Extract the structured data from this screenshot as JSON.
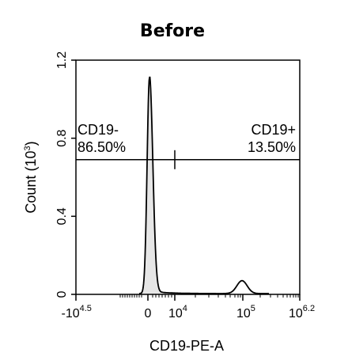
{
  "chart_data": {
    "type": "area",
    "title": "Before",
    "xlabel": "CD19-PE-A",
    "ylabel": "Count",
    "ylabel_unit_base": "10",
    "ylabel_unit_exp": "3",
    "x_scale": "biexponential",
    "ylim": [
      0,
      1.2
    ],
    "y_ticks": [
      "0",
      "0.4",
      "0.8",
      "1.2"
    ],
    "x_ticks": [
      {
        "base": "-10",
        "exp": "4.5"
      },
      {
        "base": "0",
        "exp": ""
      },
      {
        "base": "10",
        "exp": "4"
      },
      {
        "base": "10",
        "exp": "5"
      },
      {
        "base": "10",
        "exp": "6.2"
      }
    ],
    "series": [
      {
        "values": [
          {
            "x": 0,
            "y": 1.11
          },
          {
            "x": 60000,
            "y": 0.07
          }
        ]
      }
    ],
    "gate": {
      "y": 0.69,
      "divider_x": "10^4",
      "left": {
        "name": "CD19-",
        "pct": "86.50%"
      },
      "right": {
        "name": "CD19+",
        "pct": "13.50%"
      }
    },
    "grid": false,
    "legend": "none",
    "colors": {
      "fill": "#e6e6e6",
      "line": "#000000"
    }
  }
}
